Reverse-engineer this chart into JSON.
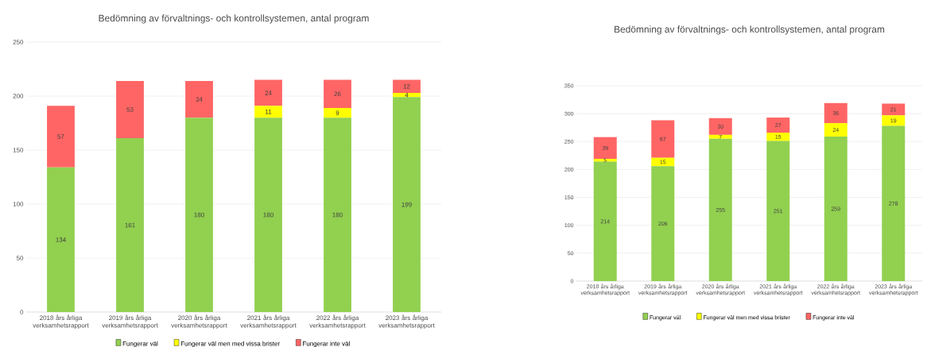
{
  "chart_data": [
    {
      "type": "bar",
      "title": "Bedömning av förvaltnings- och kontrollsystemen, antal program",
      "categories": [
        "2018 års årliga verksamhetsrapport",
        "2019 års årliga verksamhetsrapport",
        "2020 års årliga verksamhetsrapport",
        "2021 års årliga verksamhetsrapport",
        "2022 års årliga verksamhetsrapport",
        "2023 års årliga verksamhetsrapport"
      ],
      "series": [
        {
          "name": "Fungerar väl",
          "color": "#92d050",
          "values": [
            134,
            161,
            180,
            180,
            180,
            199
          ]
        },
        {
          "name": "Fungerar väl men med vissa brister",
          "color": "#ffff00",
          "values": [
            null,
            null,
            null,
            11,
            9,
            4
          ]
        },
        {
          "name": "Fungerar inte väl",
          "color": "#ff6565",
          "values": [
            57,
            53,
            34,
            24,
            26,
            12
          ]
        }
      ],
      "stacked": true,
      "ylim": [
        0,
        250
      ],
      "yticks": [
        0,
        50,
        100,
        150,
        200,
        250
      ],
      "grid": "y",
      "legend": "bottom",
      "data_labels": true
    },
    {
      "type": "bar",
      "title": "Bedömning av förvaltnings- och kontrollsystemen, antal program",
      "categories": [
        "2018 års årliga verksamhetsrapport",
        "2019 års årliga verksamhetsrapport",
        "2020 års årliga verksamhetsrapport",
        "2021 års årliga verksamhetsrapport",
        "2022 års årliga verksamhetsrapport",
        "2023 års årliga verksamhetsrapport"
      ],
      "series": [
        {
          "name": "Fungerar väl",
          "color": "#92d050",
          "values": [
            214,
            206,
            255,
            251,
            259,
            278
          ]
        },
        {
          "name": "Fungerar väl men med vissa brister",
          "color": "#ffff00",
          "values": [
            5,
            15,
            7,
            15,
            24,
            19
          ]
        },
        {
          "name": "Fungerar inte väl",
          "color": "#ff6565",
          "values": [
            39,
            67,
            30,
            27,
            36,
            21
          ]
        }
      ],
      "stacked": true,
      "ylim": [
        0,
        350
      ],
      "yticks": [
        0,
        50,
        100,
        150,
        200,
        250,
        300,
        350
      ],
      "grid": "y",
      "legend": "bottom",
      "data_labels": true
    }
  ]
}
